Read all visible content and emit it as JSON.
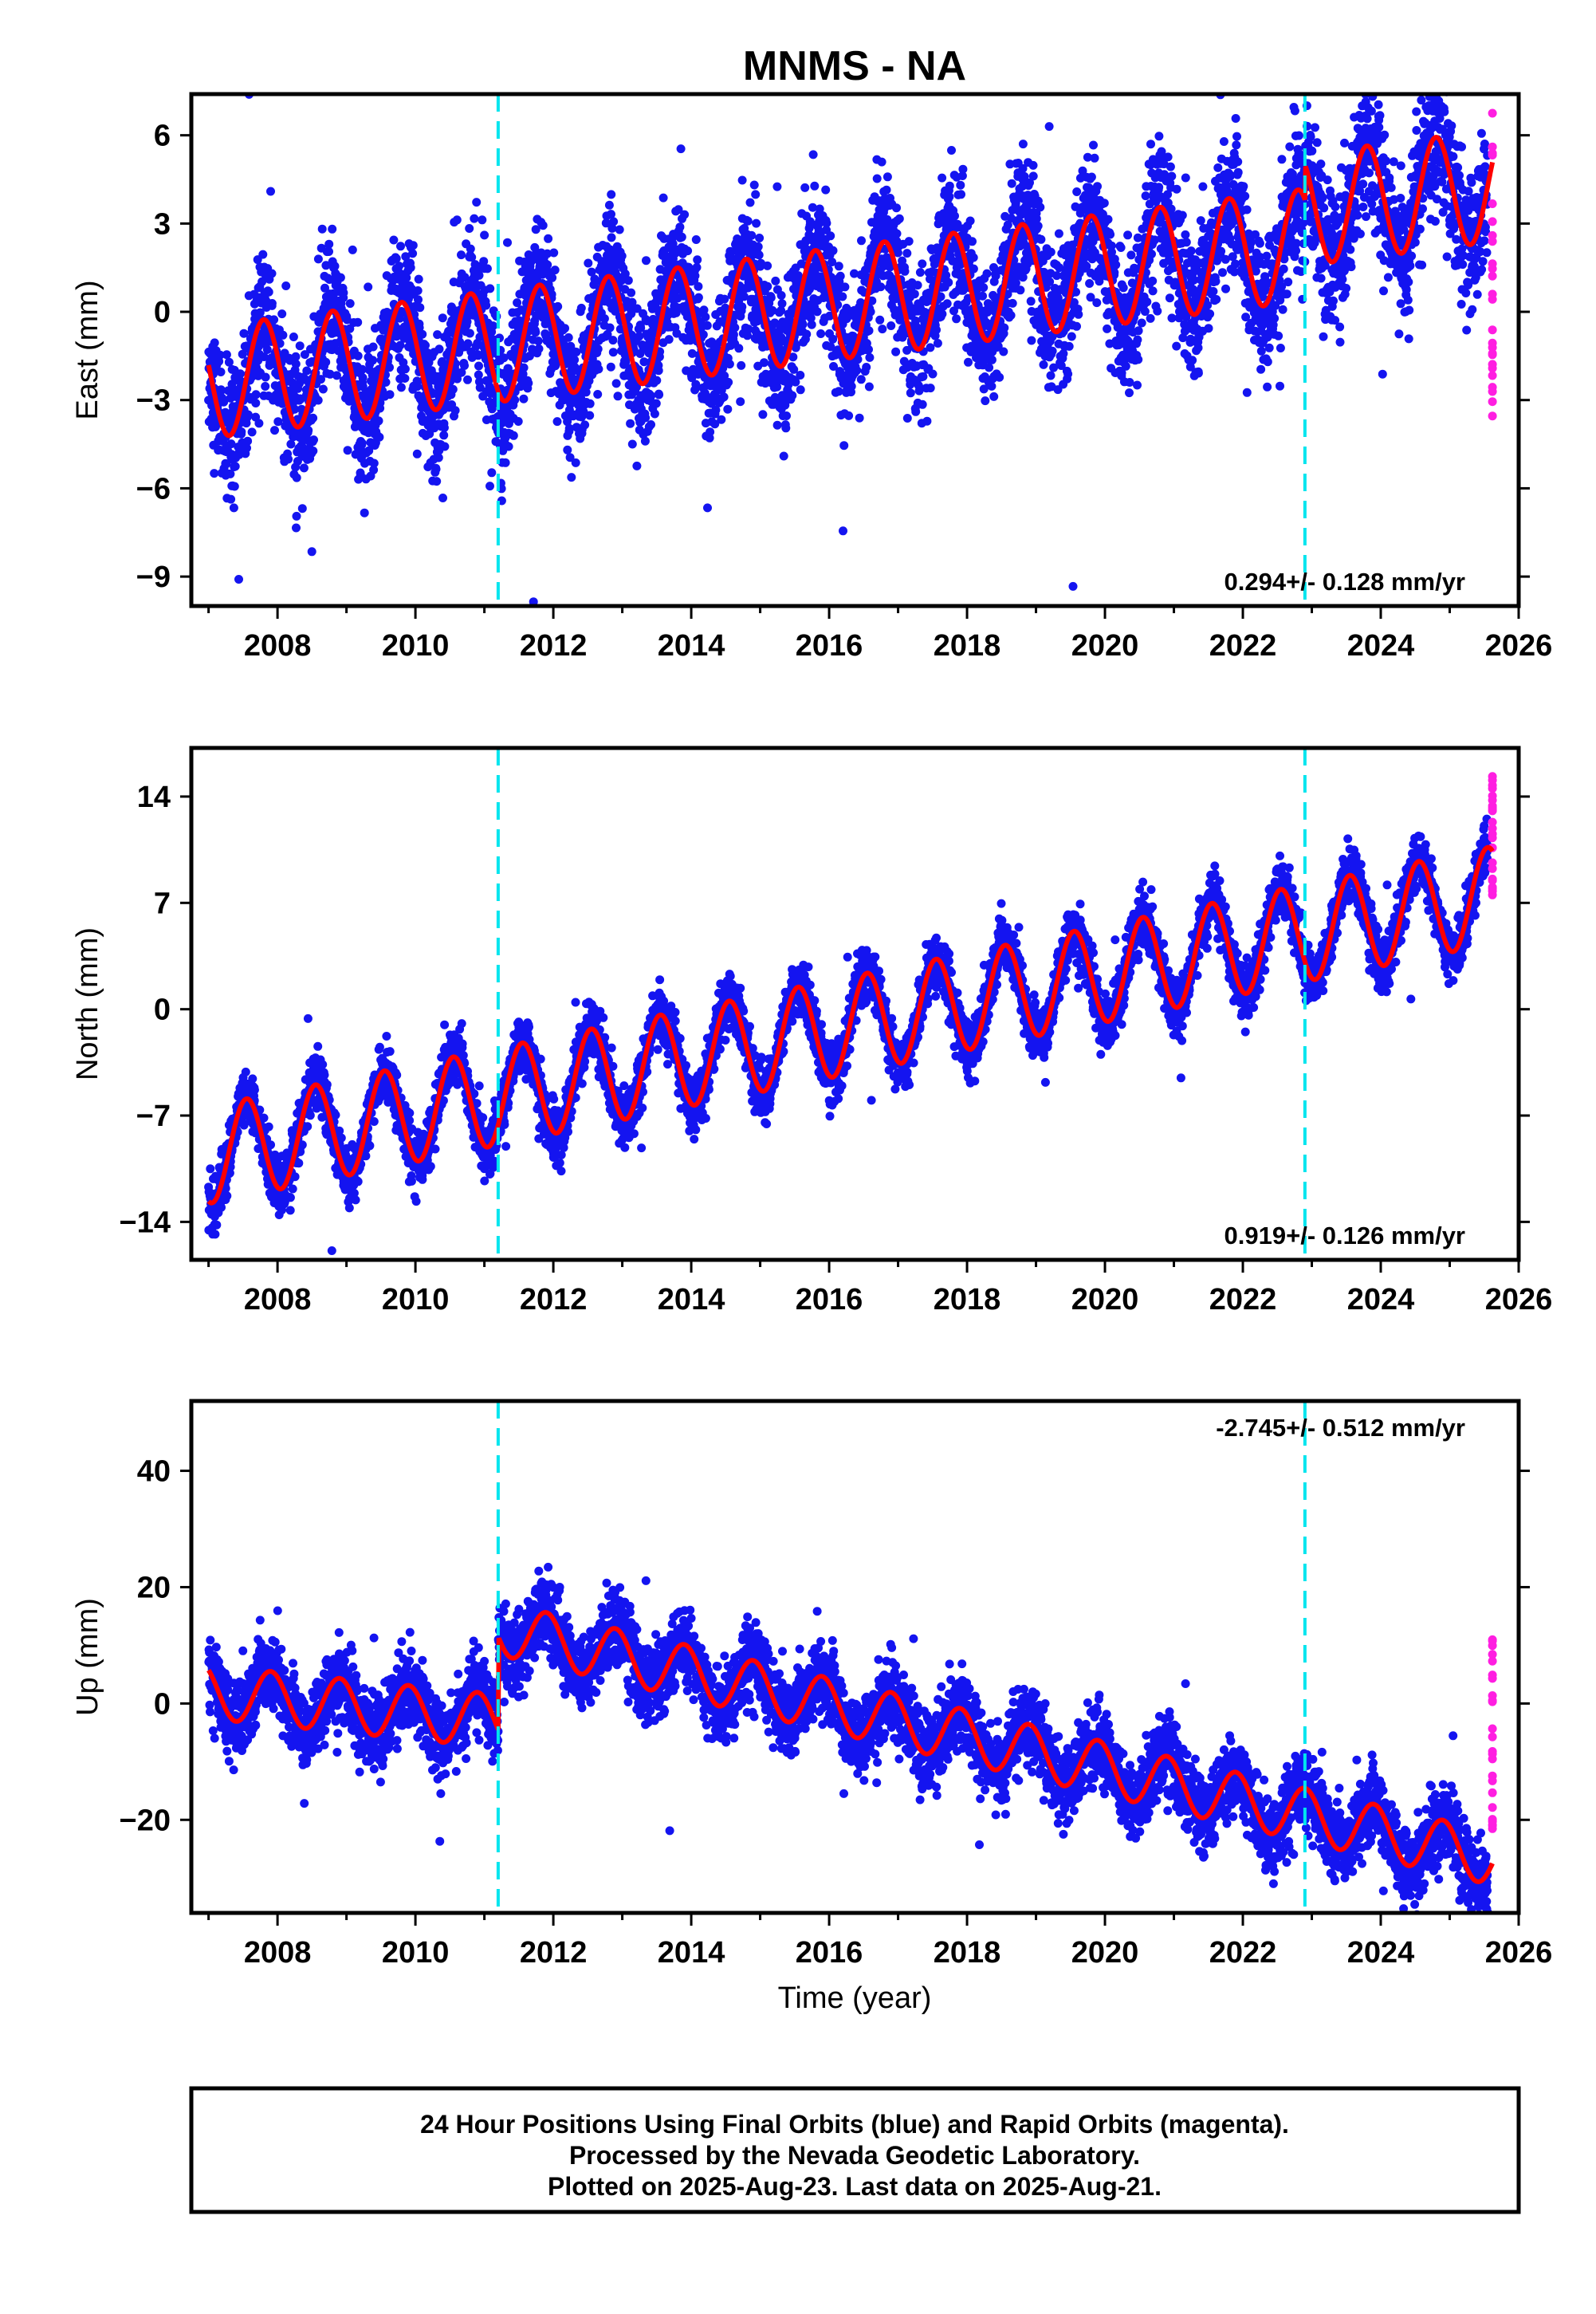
{
  "chart_data": {
    "type": "scatter",
    "title": "MNMS - NA",
    "xlabel": "Time (year)",
    "xlim": [
      2006.75,
      2026.0
    ],
    "x_ticks": [
      2008,
      2010,
      2012,
      2014,
      2016,
      2018,
      2020,
      2022,
      2024,
      2026
    ],
    "x_start": 2007.0,
    "final_end": 2025.55,
    "rapid_x": 2025.62,
    "breaks": [
      2011.2,
      2022.9
    ],
    "colors": {
      "final": "#1414f0",
      "rapid": "#ff1ee1",
      "model": "#ff0000",
      "breaks": "#00e5ee",
      "frame": "#000000"
    },
    "panels": [
      {
        "name": "east",
        "ylabel": "East (mm)",
        "ylim": [
          -10.0,
          7.4
        ],
        "yticks": [
          -9,
          -6,
          -3,
          0,
          3,
          6
        ],
        "rate": "0.294+/- 0.128 mm/yr",
        "rate_position": "bottom-right",
        "model": {
          "a0": -2.4,
          "trend": 0.294,
          "amp": 1.9,
          "phase": 0.55,
          "spread": 1.15,
          "offsets": [
            {
              "t": 2022.9,
              "d": 1.2
            }
          ],
          "rapid_range": [
            -3.6,
            7.1
          ]
        }
      },
      {
        "name": "north",
        "ylabel": "North (mm)",
        "ylim": [
          -16.5,
          17.2
        ],
        "yticks": [
          -14,
          -7,
          0,
          7,
          14
        ],
        "rate": "0.919+/- 0.126 mm/yr",
        "rate_position": "bottom-right",
        "model": {
          "a0": -9.6,
          "trend": 0.919,
          "amp": 3.2,
          "phase": 0.3,
          "spread": 0.9,
          "offsets": [],
          "rapid_range": [
            7.5,
            15.5
          ]
        }
      },
      {
        "name": "up",
        "ylabel": "Up (mm)",
        "ylim": [
          -36.0,
          52.0
        ],
        "yticks": [
          -20,
          0,
          20,
          40
        ],
        "rate": "-2.745+/- 0.512 mm/yr",
        "rate_position": "top-right",
        "model": {
          "a0": 2.0,
          "trend": -1.2,
          "amp": 4.6,
          "phase": 0.65,
          "spread": 3.2,
          "offsets": [
            {
              "t": 2011.2,
              "d": 16.0
            }
          ],
          "post_decay": -2.745,
          "rapid_range": [
            -22.0,
            13.0
          ]
        }
      }
    ]
  },
  "footer": {
    "line1": "24 Hour Positions Using Final Orbits (blue) and Rapid Orbits (magenta).",
    "line2": "Processed by the Nevada Geodetic Laboratory.",
    "line3": "Plotted on 2025-Aug-23. Last data on 2025-Aug-21."
  }
}
